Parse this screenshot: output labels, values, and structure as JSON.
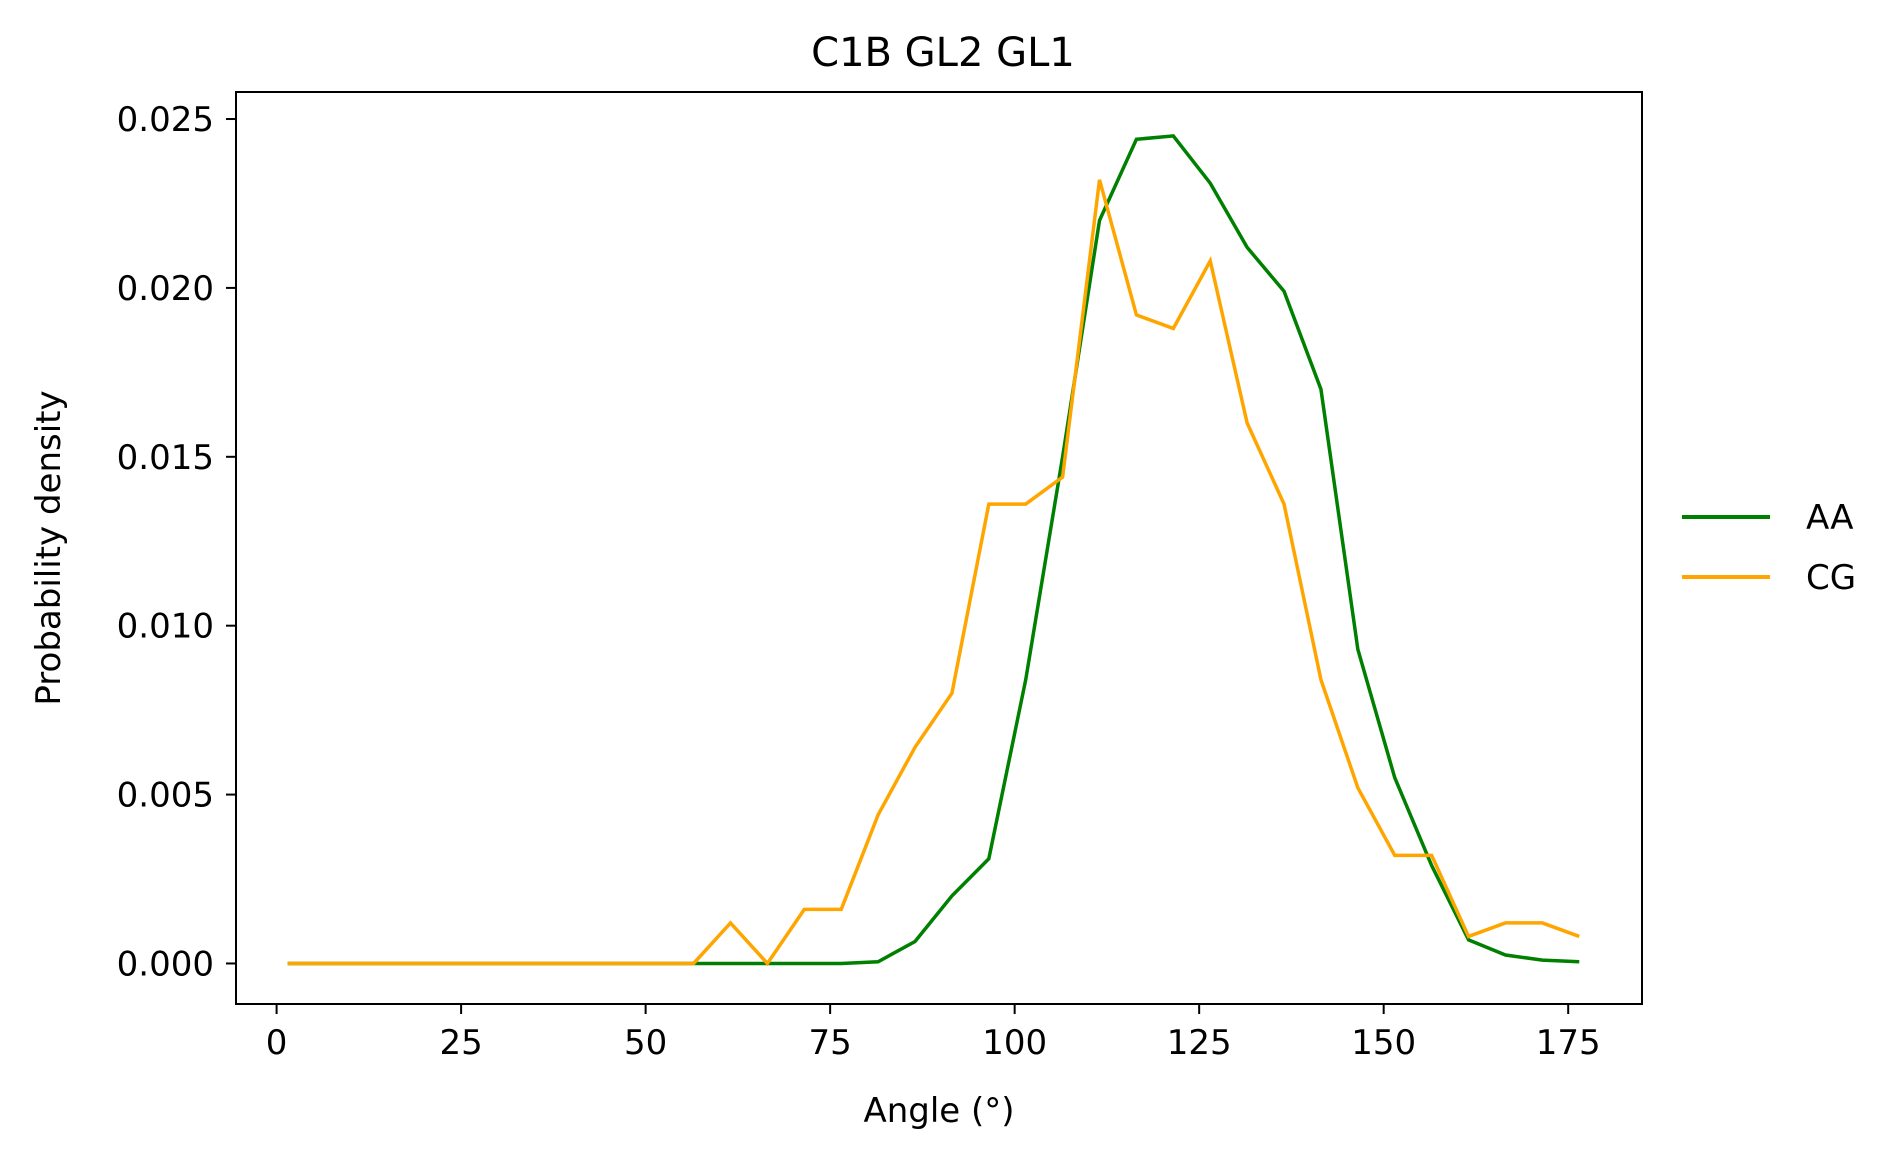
{
  "chart_data": {
    "type": "line",
    "title": "C1B GL2 GL1",
    "xlabel": "Angle (°)",
    "ylabel": "Probability density",
    "xlim": [
      -5.5,
      185
    ],
    "ylim": [
      -0.0012,
      0.0258
    ],
    "xticks": [
      0,
      25,
      50,
      75,
      100,
      125,
      150,
      175
    ],
    "xtick_labels": [
      "0",
      "25",
      "50",
      "75",
      "100",
      "125",
      "150",
      "175"
    ],
    "yticks": [
      0,
      0.005,
      0.01,
      0.015,
      0.02,
      0.025
    ],
    "ytick_labels": [
      "0.000",
      "0.005",
      "0.010",
      "0.015",
      "0.020",
      "0.025"
    ],
    "grid": false,
    "legend_position": "right",
    "x": [
      1.5,
      6.5,
      11.5,
      16.5,
      21.5,
      26.5,
      31.5,
      36.5,
      41.5,
      46.5,
      51.5,
      56.5,
      61.5,
      66.5,
      71.5,
      76.5,
      81.5,
      86.5,
      91.5,
      96.5,
      101.5,
      106.5,
      111.5,
      116.5,
      121.5,
      126.5,
      131.5,
      136.5,
      141.5,
      146.5,
      151.5,
      156.5,
      161.5,
      166.5,
      171.5,
      176.5
    ],
    "series": [
      {
        "name": "AA",
        "color": "#008000",
        "values": [
          0,
          0,
          0,
          0,
          0,
          0,
          0,
          0,
          0,
          0,
          0,
          0,
          0,
          0,
          0,
          0,
          5e-05,
          0.00065,
          0.002,
          0.0031,
          0.0084,
          0.015,
          0.022,
          0.0244,
          0.0245,
          0.0231,
          0.0212,
          0.0199,
          0.017,
          0.0093,
          0.0055,
          0.0029,
          0.0007,
          0.00025,
          0.0001,
          5e-05
        ]
      },
      {
        "name": "CG",
        "color": "#FFA500",
        "values": [
          0,
          0,
          0,
          0,
          0,
          0,
          0,
          0,
          0,
          0,
          0,
          0,
          0.0012,
          0,
          0.0016,
          0.0016,
          0.0044,
          0.0064,
          0.008,
          0.0136,
          0.0136,
          0.0144,
          0.0232,
          0.0192,
          0.0188,
          0.0208,
          0.016,
          0.0136,
          0.0084,
          0.0052,
          0.0032,
          0.0032,
          0.0008,
          0.0012,
          0.0012,
          0.0008
        ]
      }
    ]
  }
}
